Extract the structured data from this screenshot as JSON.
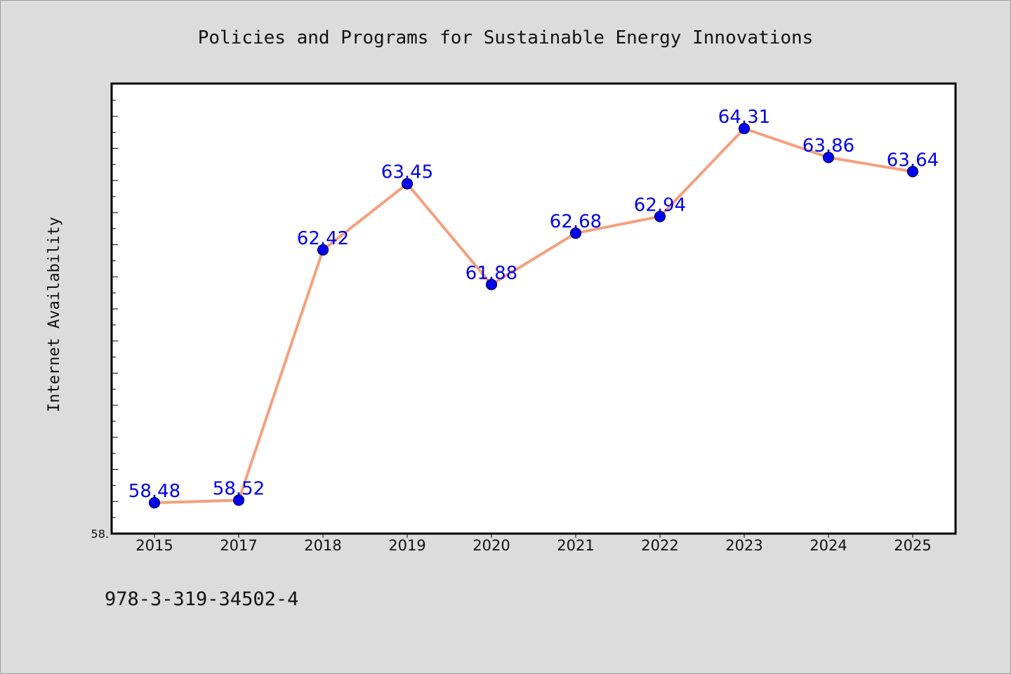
{
  "chart_data": {
    "type": "line",
    "title": "Policies and Programs for Sustainable Energy Innovations",
    "xlabel": "",
    "ylabel": "Internet Availability",
    "categories": [
      "2015",
      "2017",
      "2018",
      "2019",
      "2020",
      "2021",
      "2022",
      "2023",
      "2024",
      "2025"
    ],
    "series": [
      {
        "values": [
          58.48,
          58.52,
          62.42,
          63.45,
          61.88,
          62.68,
          62.94,
          64.31,
          63.86,
          63.64
        ],
        "labels": [
          "58.48",
          "58.52",
          "62.42",
          "63.45",
          "61.88",
          "62.68",
          "62.94",
          "64.31",
          "63.86",
          "63.64"
        ]
      }
    ],
    "ylim": [
      58.0,
      65.0
    ],
    "ytick_label": "58.",
    "grid": false,
    "legend": "none",
    "colors": {
      "line": "#f4a07e",
      "marker": "#0000ee",
      "marker_edge": "#000055",
      "label": "#0000ee",
      "plot_bg": "#ffffff",
      "figure_bg": "#dcdcdc"
    }
  },
  "footer": {
    "isbn": "978-3-319-34502-4"
  }
}
